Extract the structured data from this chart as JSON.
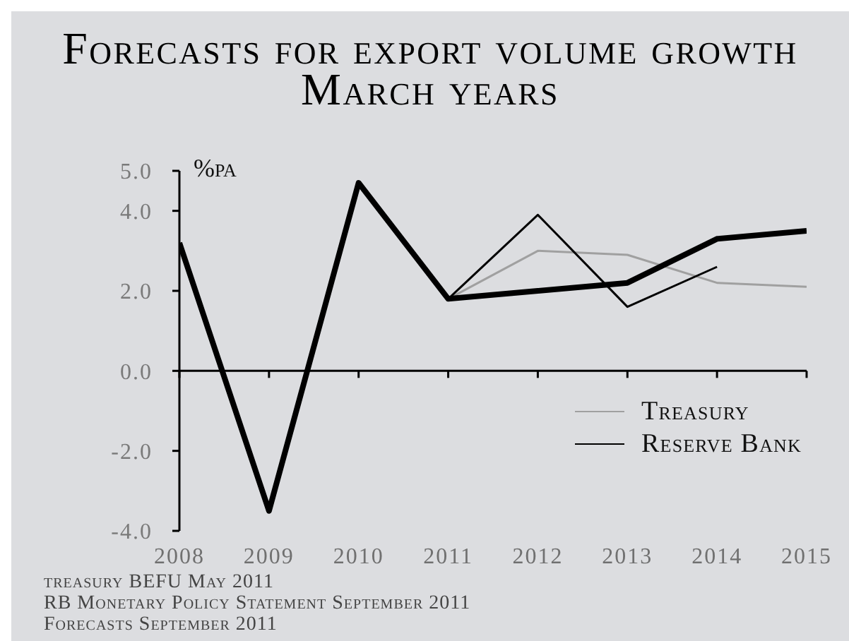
{
  "chart_data": {
    "type": "line",
    "title": "Forecasts for export volume growth",
    "subtitle": "March years",
    "ylabel": "%pa",
    "series": [
      {
        "name": "Treasury",
        "color": "#a0a0a0",
        "x": [
          2011,
          2012,
          2013,
          2014,
          2015
        ],
        "values": [
          1.8,
          3.0,
          2.9,
          2.2,
          2.1
        ]
      },
      {
        "name": "Reserve Bank",
        "color": "#000000",
        "x": [
          2011,
          2012,
          2013,
          2014
        ],
        "values": [
          1.8,
          3.9,
          1.6,
          2.6
        ]
      },
      {
        "color": "#000000",
        "x": [
          2008,
          2009,
          2010,
          2011,
          2012,
          2013,
          2014,
          2015
        ],
        "values": [
          3.2,
          -3.5,
          4.7,
          1.8,
          2.0,
          2.2,
          3.3,
          3.5
        ]
      }
    ],
    "xlim": [
      2008,
      2015
    ],
    "xticks": [
      2008,
      2009,
      2010,
      2011,
      2012,
      2013,
      2014,
      2015
    ],
    "ylim": [
      -4,
      5
    ],
    "yticks": [
      {
        "value": -4,
        "label": "-4.0"
      },
      {
        "value": -2,
        "label": "-2.0"
      },
      {
        "value": 0,
        "label": "0.0"
      },
      {
        "value": 2,
        "label": "2.0"
      },
      {
        "value": 4,
        "label": "4.0"
      },
      {
        "value": 5,
        "label": "5.0"
      }
    ],
    "legend": "bottom right",
    "marker": "none",
    "line_style": "solid",
    "annotations": [
      "treasury BEFU May 2011",
      "RB Monetary Policy Statement September 2011",
      "Forecasts September 2011"
    ]
  }
}
